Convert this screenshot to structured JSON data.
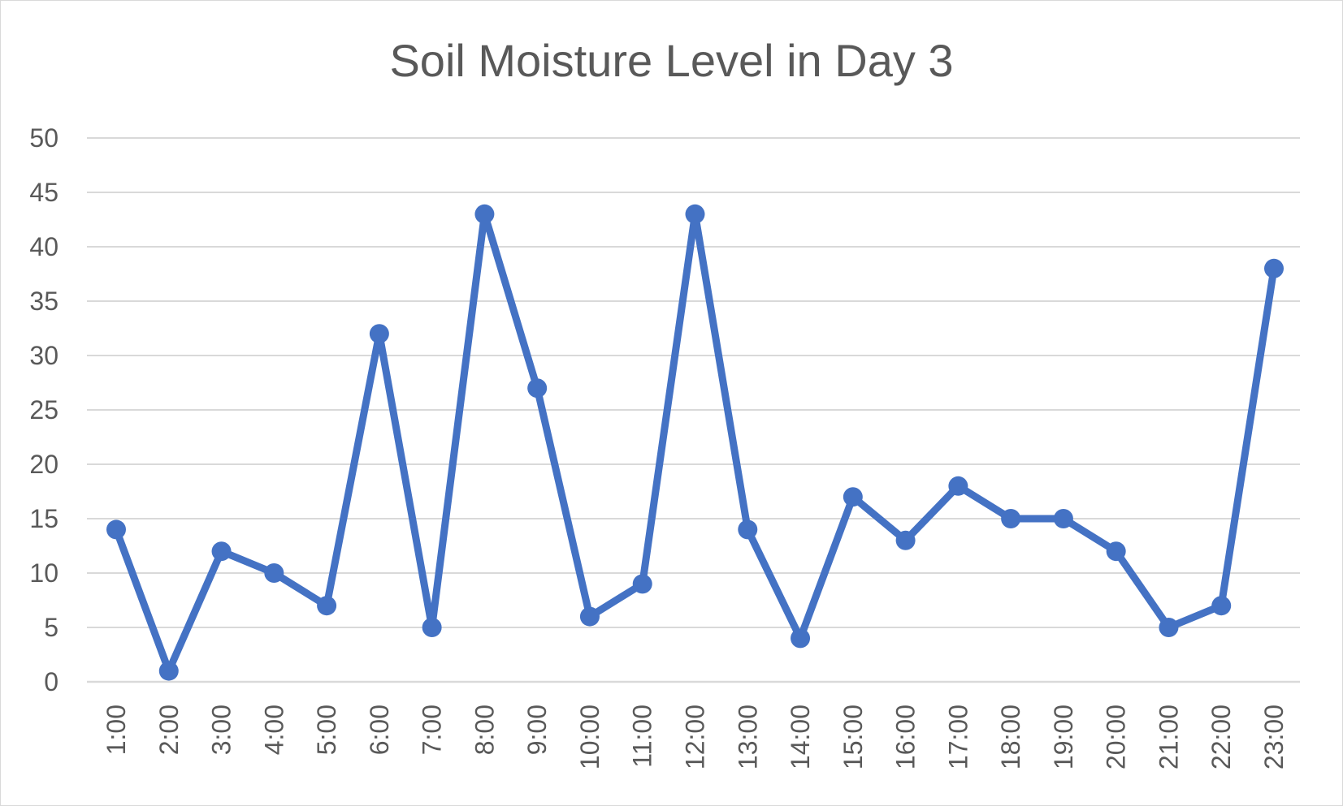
{
  "chart_data": {
    "type": "line",
    "title": "Soil Moisture Level in Day 3",
    "xlabel": "",
    "ylabel": "",
    "categories": [
      "1:00",
      "2:00",
      "3:00",
      "4:00",
      "5:00",
      "6:00",
      "7:00",
      "8:00",
      "9:00",
      "10:00",
      "11:00",
      "12:00",
      "13:00",
      "14:00",
      "15:00",
      "16:00",
      "17:00",
      "18:00",
      "19:00",
      "20:00",
      "21:00",
      "22:00",
      "23:00"
    ],
    "series": [
      {
        "values": [
          14,
          1,
          12,
          10,
          7,
          32,
          5,
          43,
          27,
          6,
          9,
          43,
          14,
          4,
          17,
          13,
          18,
          15,
          15,
          12,
          5,
          7,
          38
        ],
        "color": "#4472c4",
        "marker": "circle"
      }
    ],
    "ylim": [
      0,
      50
    ],
    "yticks": [
      0,
      5,
      10,
      15,
      20,
      25,
      30,
      35,
      40,
      45,
      50
    ],
    "grid": true,
    "legend": "none",
    "x_tick_rotation": "vertical"
  }
}
